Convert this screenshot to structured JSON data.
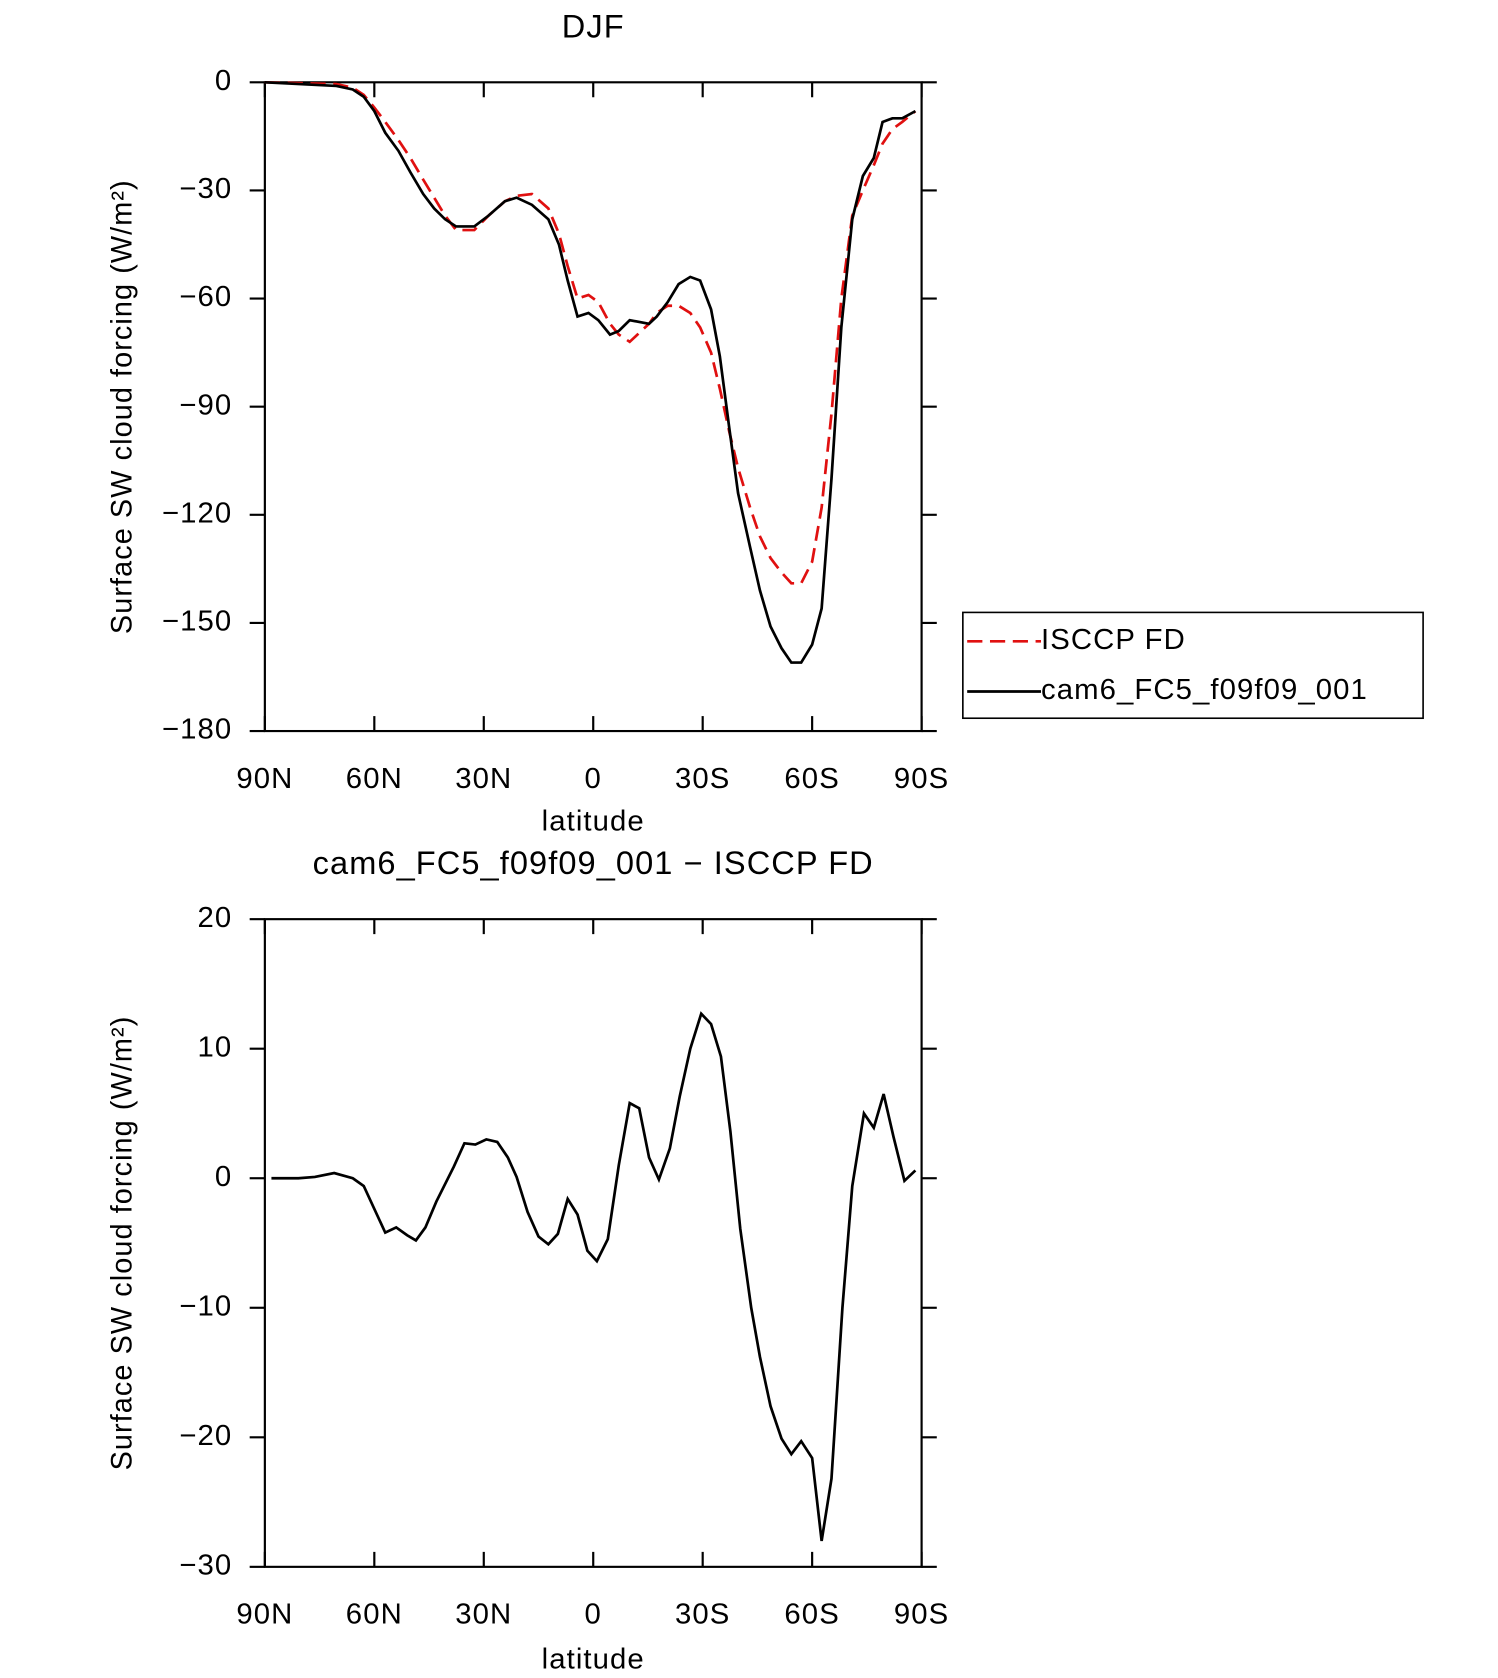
{
  "chart_data": [
    {
      "type": "line",
      "title": "DJF",
      "xlabel": "latitude",
      "ylabel": "Surface SW cloud forcing (W/m²)",
      "x": [
        90,
        70.4,
        65.9,
        62.9,
        60.0,
        57.0,
        53.4,
        50.1,
        46.6,
        43.6,
        40.6,
        37.6,
        32.6,
        28.7,
        24.2,
        21.0,
        16.8,
        12.3,
        9.4,
        7.0,
        4.3,
        1.3,
        -1.4,
        -4.6,
        -7.0,
        -10.0,
        -15.3,
        -17.4,
        -20.4,
        -23.4,
        -26.6,
        -29.3,
        -32.3,
        -34.7,
        -37.3,
        -39.7,
        -43.0,
        -45.7,
        -48.6,
        -51.6,
        -54.3,
        -57.0,
        -60.0,
        -62.6,
        -65.3,
        -68.0,
        -71.0,
        -73.9,
        -76.9,
        -79.3,
        -82.0,
        -84.7,
        -88.3
      ],
      "series": [
        {
          "name": "ISCCP FD",
          "color": "#e01010",
          "line_style": "dashed",
          "values": [
            0,
            -0.5,
            -1.5,
            -3.5,
            -7,
            -11,
            -16,
            -21,
            -27,
            -32,
            -37,
            -41,
            -41,
            -37,
            -33,
            -31.5,
            -31,
            -35,
            -42,
            -51,
            -60,
            -59,
            -61,
            -67,
            -70,
            -72,
            -67,
            -64,
            -62,
            -62,
            -64,
            -68,
            -75,
            -85,
            -97,
            -107,
            -118,
            -126,
            -132,
            -136,
            -139,
            -139,
            -133,
            -118,
            -92,
            -60,
            -37,
            -30,
            -23,
            -17,
            -13,
            -11,
            -8
          ]
        },
        {
          "name": "cam6_FC5_f09f09_001",
          "color": "#000000",
          "line_style": "solid",
          "values": [
            0,
            -1,
            -2,
            -4,
            -8,
            -14,
            -19,
            -25,
            -31,
            -35,
            -38,
            -40,
            -40,
            -37,
            -33,
            -32,
            -34,
            -38,
            -45,
            -55,
            -65,
            -64,
            -66,
            -70,
            -69,
            -66,
            -67,
            -65,
            -61,
            -56,
            -54,
            -55,
            -63,
            -76,
            -96,
            -114,
            -129,
            -141,
            -151,
            -157,
            -161,
            -161,
            -156,
            -146,
            -110,
            -68,
            -38,
            -26,
            -21,
            -11,
            -10,
            -10,
            -8
          ]
        }
      ],
      "xlim": [
        90,
        -90
      ],
      "xticks": [
        {
          "value": 90,
          "label": "90N"
        },
        {
          "value": 60,
          "label": "60N"
        },
        {
          "value": 30,
          "label": "30N"
        },
        0,
        {
          "value": -30,
          "label": "30S"
        },
        {
          "value": -60,
          "label": "60S"
        },
        {
          "value": -90,
          "label": "90S"
        }
      ],
      "ylim": [
        -180,
        0
      ],
      "yticks": [
        0,
        {
          "value": -30,
          "label": "−30"
        },
        {
          "value": -60,
          "label": "−60"
        },
        {
          "value": -90,
          "label": "−90"
        },
        {
          "value": -120,
          "label": "−120"
        },
        {
          "value": -150,
          "label": "−150"
        },
        {
          "value": -180,
          "label": "−180"
        }
      ],
      "legend": "outside-right"
    },
    {
      "type": "line",
      "title": "cam6_FC5_f09f09_001 − ISCCP FD",
      "xlabel": "latitude",
      "ylabel": "Surface SW cloud forcing (W/m²)",
      "x": [
        88.2,
        80.8,
        76.3,
        71.0,
        65.9,
        62.9,
        57.0,
        54.0,
        51.0,
        48.6,
        46.0,
        43.0,
        38.2,
        35.3,
        32.3,
        29.3,
        26.3,
        23.4,
        21.0,
        18.0,
        15.0,
        12.3,
        9.7,
        7.0,
        4.3,
        1.6,
        -1.0,
        -4.0,
        -7.0,
        -10.0,
        -12.6,
        -15.3,
        -18.0,
        -21.0,
        -23.7,
        -26.6,
        -29.6,
        -32.3,
        -35.0,
        -37.6,
        -40.3,
        -43.3,
        -45.7,
        -48.6,
        -51.6,
        -54.3,
        -57.0,
        -60.0,
        -62.6,
        -65.3,
        -68.3,
        -71.0,
        -74.2,
        -76.9,
        -79.6,
        -82.3,
        -85.3,
        -88.3
      ],
      "values": [
        0,
        0,
        0.1,
        0.4,
        0,
        -0.6,
        -4.2,
        -3.8,
        -4.4,
        -4.8,
        -3.8,
        -1.8,
        0.9,
        2.7,
        2.6,
        3,
        2.8,
        1.6,
        0.1,
        -2.6,
        -4.5,
        -5.1,
        -4.3,
        -1.6,
        -2.8,
        -5.6,
        -6.4,
        -4.7,
        1,
        5.8,
        5.4,
        1.6,
        -0.1,
        2.3,
        6.3,
        10,
        12.7,
        11.9,
        9.4,
        3.6,
        -3.9,
        -10,
        -13.8,
        -17.6,
        -20.1,
        -21.3,
        -20.3,
        -21.6,
        -28,
        -23.2,
        -10,
        -0.6,
        5,
        3.9,
        6.5,
        3.2,
        -0.2,
        0.6
      ],
      "color": "#000000",
      "xlim": [
        90,
        -90
      ],
      "xticks": [
        {
          "value": 90,
          "label": "90N"
        },
        {
          "value": 60,
          "label": "60N"
        },
        {
          "value": 30,
          "label": "30N"
        },
        0,
        {
          "value": -30,
          "label": "30S"
        },
        {
          "value": -60,
          "label": "60S"
        },
        {
          "value": -90,
          "label": "90S"
        }
      ],
      "ylim": [
        -30,
        20
      ],
      "yticks": [
        20,
        10,
        0,
        {
          "value": -10,
          "label": "−10"
        },
        {
          "value": -20,
          "label": "−20"
        },
        {
          "value": -30,
          "label": "−30"
        }
      ]
    }
  ]
}
